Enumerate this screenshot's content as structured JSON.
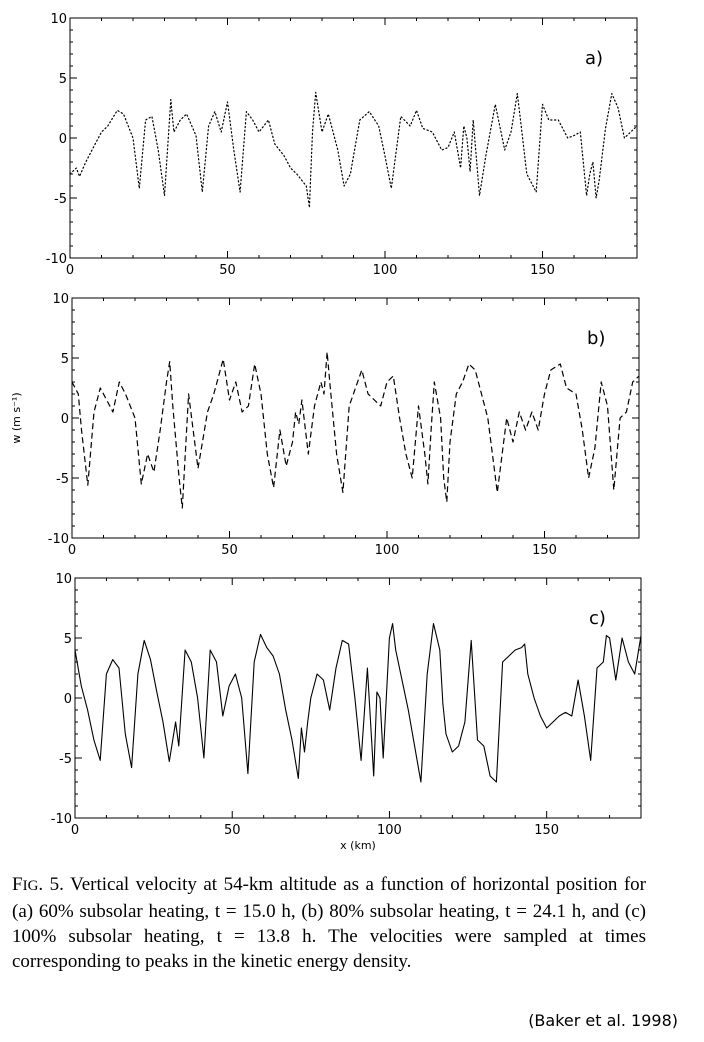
{
  "chart_data": [
    {
      "type": "line",
      "panel_label": "a)",
      "line_style": "dotted",
      "xlim": [
        0,
        180
      ],
      "ylim": [
        -10,
        10
      ],
      "x_ticks": [
        "0",
        "50",
        "100",
        "150"
      ],
      "y_ticks": [
        "10",
        "5",
        "0",
        "-5",
        "-10"
      ],
      "xlabel": "",
      "ylabel": "",
      "x": [
        0,
        2,
        3,
        5,
        7,
        10,
        12,
        15,
        17,
        20,
        22,
        24,
        26,
        28,
        30,
        32,
        33,
        35,
        37,
        40,
        42,
        44,
        46,
        48,
        50,
        52,
        54,
        56,
        58,
        60,
        63,
        65,
        68,
        70,
        72,
        75,
        76,
        77,
        78,
        80,
        82,
        85,
        87,
        89,
        90,
        92,
        95,
        98,
        100,
        102,
        105,
        108,
        110,
        112,
        115,
        118,
        120,
        122,
        124,
        125,
        126,
        127,
        128,
        130,
        132,
        135,
        138,
        140,
        142,
        143,
        145,
        148,
        150,
        152,
        155,
        158,
        160,
        162,
        164,
        165,
        166,
        167,
        168,
        170,
        172,
        174,
        176,
        178,
        180
      ],
      "y": [
        -3,
        -2.5,
        -3.2,
        -2,
        -1,
        0.5,
        1,
        2.3,
        2,
        0,
        -4.2,
        1.5,
        1.8,
        -1,
        -4.8,
        3.2,
        0.5,
        1.5,
        2,
        0.2,
        -4.5,
        1,
        2.2,
        0.5,
        3,
        -1,
        -4.5,
        2.2,
        1.5,
        0.5,
        1.5,
        -0.5,
        -1.5,
        -2.5,
        -3,
        -4,
        -5.8,
        0.5,
        3.8,
        0.5,
        2,
        -1,
        -4,
        -3,
        -1.5,
        1.5,
        2.2,
        1,
        -1.5,
        -4.2,
        1.8,
        1,
        2.3,
        0.8,
        0.5,
        -1,
        -0.8,
        0.5,
        -2.5,
        1,
        0,
        -2.8,
        1.5,
        -4.8,
        -1.5,
        2.8,
        -1,
        0.5,
        3.7,
        1.5,
        -3,
        -4.5,
        2.8,
        1.5,
        1.5,
        0,
        0.2,
        0.5,
        -4.8,
        -3,
        -2,
        -5,
        -3.5,
        0.8,
        3.7,
        2.5,
        0,
        0.5,
        1
      ]
    },
    {
      "type": "line",
      "panel_label": "b)",
      "line_style": "dashed",
      "xlim": [
        0,
        180
      ],
      "ylim": [
        -10,
        10
      ],
      "x_ticks": [
        "0",
        "50",
        "100",
        "150"
      ],
      "y_ticks": [
        "10",
        "5",
        "0",
        "-5",
        "-10"
      ],
      "xlabel": "",
      "ylabel": "w (m s⁻¹)",
      "x": [
        0,
        2,
        3,
        5,
        7,
        9,
        11,
        13,
        15,
        17,
        20,
        22,
        24,
        26,
        28,
        30,
        31,
        32,
        34,
        35,
        37,
        40,
        43,
        45,
        48,
        50,
        52,
        54,
        56,
        58,
        60,
        62,
        64,
        66,
        68,
        70,
        71,
        72,
        73,
        75,
        77,
        79,
        80,
        81,
        82,
        84,
        86,
        88,
        90,
        92,
        94,
        96,
        98,
        100,
        102,
        104,
        106,
        108,
        110,
        112,
        113,
        114,
        115,
        117,
        118,
        119,
        120,
        122,
        124,
        126,
        128,
        130,
        132,
        135,
        138,
        140,
        142,
        144,
        146,
        148,
        150,
        152,
        155,
        157,
        160,
        162,
        164,
        166,
        168,
        170,
        172,
        174,
        176,
        178,
        180
      ],
      "y": [
        3,
        2,
        -1,
        -5.6,
        0.5,
        2.5,
        1.5,
        0.5,
        3,
        2,
        0,
        -5.5,
        -3,
        -4.5,
        -1,
        3,
        4.7,
        1,
        -5,
        -7.5,
        2,
        -4.2,
        0.5,
        2,
        4.9,
        1.5,
        3,
        0.5,
        1,
        4.5,
        2,
        -3,
        -5.8,
        -1,
        -4,
        -2,
        0.5,
        -0.5,
        1.5,
        -3,
        1,
        3,
        2,
        5.5,
        2.5,
        -3,
        -6.2,
        1,
        2.5,
        4,
        2,
        1.5,
        1,
        3,
        3.5,
        0,
        -3,
        -5,
        1,
        -3,
        -5.5,
        -1,
        3,
        0,
        -5,
        -7,
        -2,
        2,
        3,
        4.5,
        4,
        2,
        0,
        -6.2,
        0,
        -2,
        0.5,
        -1,
        0.5,
        -1,
        2,
        4,
        4.5,
        2.5,
        2,
        -1,
        -5,
        -2.5,
        3,
        1,
        -6,
        0,
        0.5,
        3,
        3.5
      ]
    },
    {
      "type": "line",
      "panel_label": "c)",
      "line_style": "solid",
      "xlim": [
        0,
        180
      ],
      "ylim": [
        -10,
        10
      ],
      "x_ticks": [
        "0",
        "50",
        "100",
        "150"
      ],
      "y_ticks": [
        "10",
        "5",
        "0",
        "-5",
        "-10"
      ],
      "xlabel": "x (km)",
      "ylabel": "",
      "x": [
        0,
        2,
        4,
        6,
        8,
        10,
        12,
        14,
        16,
        18,
        20,
        22,
        24,
        26,
        28,
        30,
        32,
        33,
        35,
        37,
        39,
        41,
        43,
        45,
        47,
        49,
        51,
        53,
        55,
        57,
        59,
        61,
        63,
        65,
        67,
        69,
        71,
        72,
        73,
        74,
        75,
        77,
        79,
        81,
        83,
        85,
        87,
        89,
        91,
        93,
        95,
        96,
        97,
        98,
        100,
        101,
        102,
        104,
        106,
        108,
        110,
        112,
        114,
        116,
        117,
        118,
        120,
        122,
        124,
        126,
        128,
        130,
        132,
        134,
        136,
        138,
        140,
        142,
        143,
        144,
        146,
        148,
        150,
        152,
        154,
        156,
        158,
        160,
        162,
        164,
        166,
        168,
        169,
        170,
        172,
        174,
        176,
        178,
        180
      ],
      "y": [
        4,
        1,
        -1,
        -3.5,
        -5.2,
        2,
        3.2,
        2.5,
        -3,
        -5.8,
        2,
        4.8,
        3.2,
        0.5,
        -2,
        -5.3,
        -2,
        -4,
        4,
        3,
        0,
        -5,
        4,
        3,
        -1.5,
        1,
        2,
        0,
        -6.3,
        3,
        5.3,
        4.2,
        3.5,
        2,
        -1,
        -3.5,
        -6.7,
        -2.5,
        -4.5,
        -2,
        0,
        2,
        1.5,
        -1,
        2.5,
        4.8,
        4.5,
        0,
        -5.2,
        2.5,
        -6.5,
        0.5,
        0,
        -5,
        5,
        6.2,
        4,
        1.5,
        -1,
        -4,
        -7,
        2,
        6.2,
        4,
        -0.5,
        -3,
        -4.5,
        -4,
        -2,
        4.8,
        -3.5,
        -4,
        -6.5,
        -7,
        3,
        3.5,
        4,
        4.2,
        4.5,
        2,
        0,
        -1.5,
        -2.5,
        -2,
        -1.5,
        -1.2,
        -1.5,
        1.5,
        -1.5,
        -5.2,
        2.5,
        3,
        5.2,
        5,
        1.5,
        5,
        3,
        2,
        5.2
      ]
    }
  ],
  "caption": {
    "fig_label_initial": "F",
    "fig_label_rest": "IG",
    "fig_label_number": ". 5.",
    "text": "Vertical velocity at 54-km altitude as a function of horizontal position for (a) 60% subsolar heating, t = 15.0 h, (b) 80% subsolar heating, t = 24.1 h, and (c) 100% subsolar heating, t = 13.8 h. The velocities were sampled at times corresponding to peaks in the kinetic energy density."
  },
  "credit": "(Baker et al. 1998)"
}
